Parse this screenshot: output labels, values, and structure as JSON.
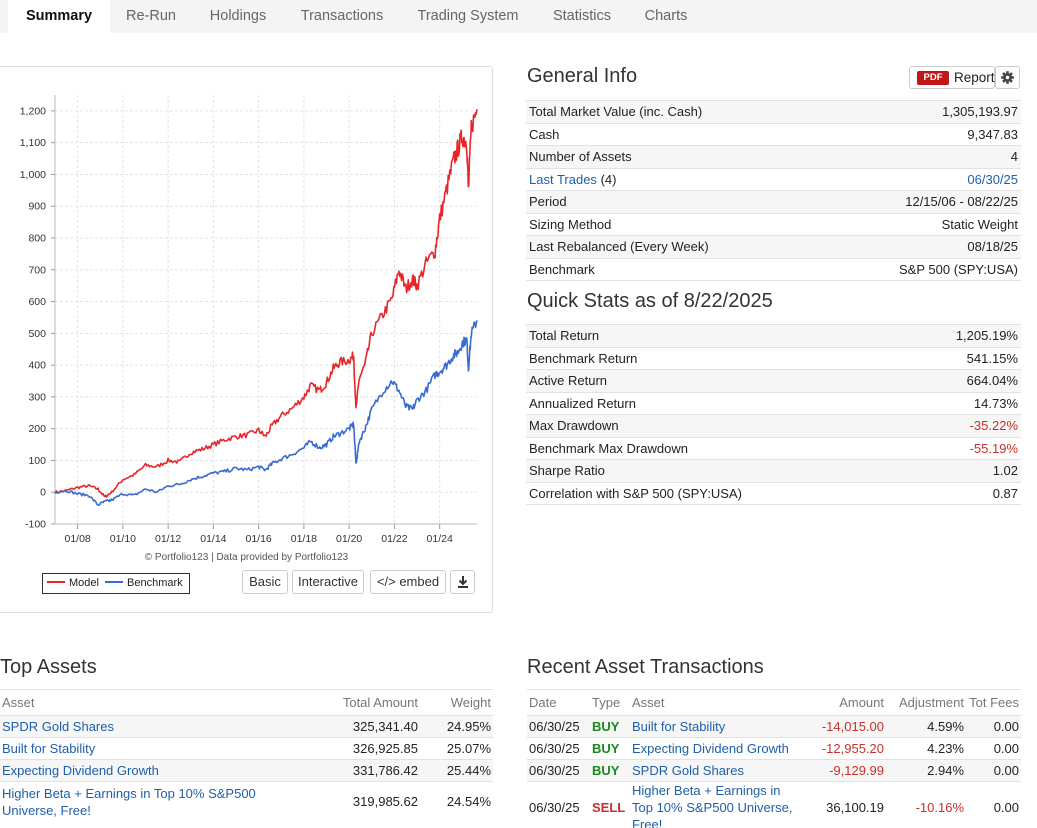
{
  "tabs": [
    {
      "label": "Summary",
      "active": true
    },
    {
      "label": "Re-Run"
    },
    {
      "label": "Holdings"
    },
    {
      "label": "Transactions"
    },
    {
      "label": "Trading System"
    },
    {
      "label": "Statistics"
    },
    {
      "label": "Charts"
    }
  ],
  "chart": {
    "credit": "© Portfolio123 | Data provided by Portfolio123",
    "legend": {
      "model": "Model",
      "benchmark": "Benchmark"
    },
    "buttons": {
      "basic": "Basic",
      "interactive": "Interactive",
      "embed": "</> embed"
    },
    "download_icon": "download-icon"
  },
  "chart_data": {
    "type": "line",
    "x_ticks": [
      "01/08",
      "01/10",
      "01/12",
      "01/14",
      "01/16",
      "01/18",
      "01/20",
      "01/22",
      "01/24"
    ],
    "y_ticks": [
      "-100",
      "0",
      "100",
      "200",
      "300",
      "400",
      "500",
      "600",
      "700",
      "800",
      "900",
      "1,000",
      "1,100",
      "1,200"
    ],
    "ylim": [
      -100,
      1250
    ],
    "xlim": [
      2007.0,
      2025.65
    ],
    "grid": true,
    "legend_position": "bottom-left",
    "series": [
      {
        "name": "Model",
        "color": "#e8262a",
        "x": [
          2007.0,
          2007.5,
          2008.0,
          2008.5,
          2008.9,
          2009.2,
          2009.5,
          2010.0,
          2010.5,
          2011.0,
          2011.5,
          2012.0,
          2012.5,
          2013.0,
          2013.5,
          2014.0,
          2014.5,
          2015.0,
          2015.5,
          2016.0,
          2016.3,
          2016.6,
          2017.0,
          2017.5,
          2018.0,
          2018.3,
          2018.7,
          2019.0,
          2019.3,
          2019.6,
          2020.0,
          2020.2,
          2020.3,
          2020.45,
          2020.7,
          2021.0,
          2021.5,
          2021.9,
          2022.2,
          2022.5,
          2022.8,
          2023.0,
          2023.4,
          2023.8,
          2024.0,
          2024.3,
          2024.6,
          2024.8,
          2025.0,
          2025.2,
          2025.27,
          2025.4,
          2025.65
        ],
        "y": [
          0,
          5,
          15,
          20,
          10,
          -15,
          0,
          40,
          55,
          85,
          80,
          100,
          95,
          125,
          135,
          150,
          165,
          175,
          180,
          195,
          175,
          210,
          240,
          265,
          300,
          335,
          320,
          345,
          390,
          410,
          415,
          430,
          260,
          360,
          400,
          500,
          560,
          610,
          700,
          640,
          670,
          650,
          720,
          760,
          860,
          950,
          1040,
          1080,
          1120,
          1100,
          950,
          1150,
          1205
        ]
      },
      {
        "name": "Benchmark",
        "color": "#3a6bd1",
        "x": [
          2007.0,
          2007.5,
          2008.0,
          2008.5,
          2008.9,
          2009.2,
          2009.5,
          2010.0,
          2010.5,
          2011.0,
          2011.5,
          2012.0,
          2012.5,
          2013.0,
          2013.5,
          2014.0,
          2014.5,
          2015.0,
          2015.5,
          2016.0,
          2016.3,
          2016.6,
          2017.0,
          2017.5,
          2018.0,
          2018.3,
          2018.7,
          2019.0,
          2019.3,
          2019.6,
          2020.0,
          2020.2,
          2020.3,
          2020.45,
          2020.7,
          2021.0,
          2021.5,
          2021.9,
          2022.2,
          2022.5,
          2022.8,
          2023.0,
          2023.4,
          2023.8,
          2024.0,
          2024.3,
          2024.6,
          2024.8,
          2025.0,
          2025.2,
          2025.27,
          2025.4,
          2025.65
        ],
        "y": [
          0,
          5,
          -5,
          -10,
          -40,
          -30,
          -25,
          -5,
          -10,
          10,
          0,
          20,
          25,
          40,
          50,
          60,
          65,
          75,
          70,
          80,
          70,
          90,
          105,
          120,
          140,
          160,
          140,
          150,
          175,
          185,
          200,
          215,
          90,
          160,
          200,
          260,
          320,
          350,
          320,
          270,
          260,
          290,
          320,
          370,
          380,
          400,
          430,
          440,
          470,
          480,
          390,
          500,
          541
        ]
      }
    ]
  },
  "general_info": {
    "title": "General Info",
    "report_label": "Report",
    "pdf_badge": "PDF",
    "gear_icon": "gear-icon",
    "rows": [
      {
        "label": "Total Market Value (inc. Cash)",
        "value": "1,305,193.97"
      },
      {
        "label": "Cash",
        "value": "9,347.83"
      },
      {
        "label": "Number of Assets",
        "value": "4"
      },
      {
        "label": "Last Trades",
        "label_suffix": "(4)",
        "value": "06/30/25",
        "link": true
      },
      {
        "label": "Period",
        "value": "12/15/06 - 08/22/25"
      },
      {
        "label": "Sizing Method",
        "value": "Static Weight"
      },
      {
        "label": "Last Rebalanced (Every Week)",
        "value": "08/18/25"
      },
      {
        "label": "Benchmark",
        "value": "S&P 500 (SPY:USA)"
      }
    ]
  },
  "quick_stats": {
    "title": "Quick Stats as of 8/22/2025",
    "rows": [
      {
        "label": "Total Return",
        "value": "1,205.19%"
      },
      {
        "label": "Benchmark Return",
        "value": "541.15%"
      },
      {
        "label": "Active Return",
        "value": "664.04%"
      },
      {
        "label": "Annualized Return",
        "value": "14.73%"
      },
      {
        "label": "Max Drawdown",
        "value": "-35.22%",
        "negative": true
      },
      {
        "label": "Benchmark Max Drawdown",
        "value": "-55.19%",
        "negative": true
      },
      {
        "label": "Sharpe Ratio",
        "value": "1.02"
      },
      {
        "label": "Correlation with S&P 500 (SPY:USA)",
        "value": "0.87"
      }
    ]
  },
  "top_assets": {
    "title": "Top Assets",
    "headers": {
      "asset": "Asset",
      "amount": "Total Amount",
      "weight": "Weight"
    },
    "rows": [
      {
        "asset": "SPDR Gold Shares",
        "amount": "325,341.40",
        "weight": "24.95%"
      },
      {
        "asset": "Built for Stability",
        "amount": "326,925.85",
        "weight": "25.07%"
      },
      {
        "asset": "Expecting Dividend Growth",
        "amount": "331,786.42",
        "weight": "25.44%"
      },
      {
        "asset": "Higher Beta + Earnings in Top 10% S&P500",
        "asset_line2": "Universe, Free!",
        "amount": "319,985.62",
        "weight": "24.54%"
      }
    ]
  },
  "recent_transactions": {
    "title": "Recent Asset Transactions",
    "headers": {
      "date": "Date",
      "type": "Type",
      "asset": "Asset",
      "amount": "Amount",
      "adjustment": "Adjustment",
      "fees": "Tot Fees"
    },
    "rows": [
      {
        "date": "06/30/25",
        "type": "BUY",
        "asset": "Built for Stability",
        "amount": "-14,015.00",
        "adjustment": "4.59%",
        "fees": "0.00"
      },
      {
        "date": "06/30/25",
        "type": "BUY",
        "asset": "Expecting Dividend Growth",
        "amount": "-12,955.20",
        "adjustment": "4.23%",
        "fees": "0.00"
      },
      {
        "date": "06/30/25",
        "type": "BUY",
        "asset": "SPDR Gold Shares",
        "amount": "-9,129.99",
        "adjustment": "2.94%",
        "fees": "0.00"
      },
      {
        "date": "06/30/25",
        "type": "SELL",
        "asset": "Higher Beta + Earnings in",
        "asset_line2": "Top 10% S&P500 Universe,",
        "asset_line3": "Free!",
        "amount": "36,100.19",
        "adjustment": "-10.16%",
        "fees": "0.00"
      }
    ]
  }
}
